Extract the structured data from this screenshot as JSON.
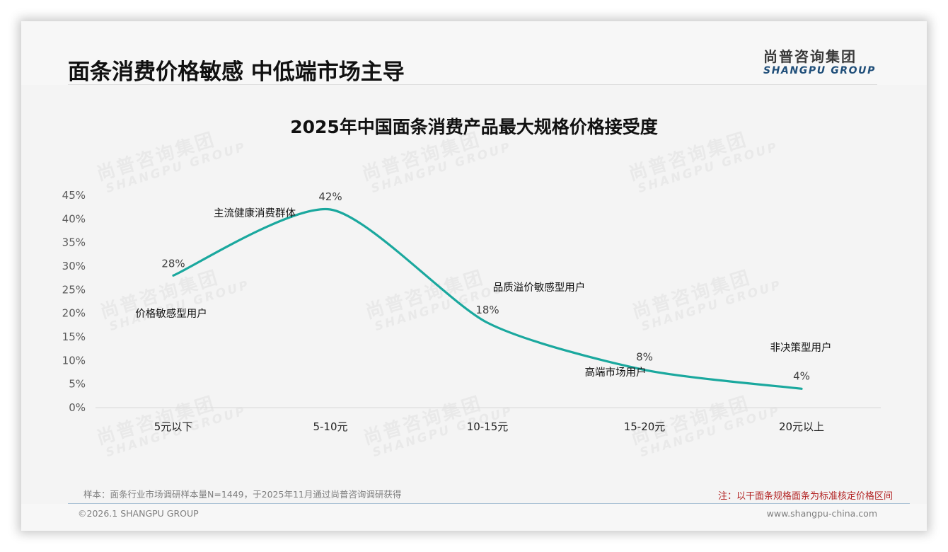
{
  "header": {
    "title": "面条消费价格敏感 中低端市场主导",
    "logo_cn": "尚普咨询集团",
    "logo_en": "SHANGPU GROUP"
  },
  "watermark": {
    "cn": "尚普咨询集团",
    "en": "SHANGPU GROUP"
  },
  "chart_data": {
    "type": "line",
    "title": "2025年中国面条消费产品最大规格价格接受度",
    "xlabel": "",
    "ylabel": "",
    "categories": [
      "5元以下",
      "5-10元",
      "10-15元",
      "15-20元",
      "20元以上"
    ],
    "values": [
      28,
      42,
      18,
      8,
      4
    ],
    "value_labels": [
      "28%",
      "42%",
      "18%",
      "8%",
      "4%"
    ],
    "yticks": [
      "0%",
      "5%",
      "10%",
      "15%",
      "20%",
      "25%",
      "30%",
      "35%",
      "40%",
      "45%"
    ],
    "ylim": [
      0,
      45
    ],
    "grid": false,
    "legend": null,
    "line_color": "#1aa89e",
    "annotations": [
      {
        "text": "价格敏感型用户",
        "category": "5元以下"
      },
      {
        "text": "主流健康消费群体",
        "category": "5-10元"
      },
      {
        "text": "品质溢价敏感型用户",
        "category": "10-15元"
      },
      {
        "text": "高端市场用户",
        "category": "15-20元"
      },
      {
        "text": "非决策型用户",
        "category": "20元以上"
      }
    ]
  },
  "footer": {
    "source": "样本：面条行业市场调研样本量N=1449，于2025年11月通过尚普咨询调研获得",
    "note": "注：以干面条规格面条为标准核定价格区间",
    "copyright": "©2026.1 SHANGPU GROUP",
    "website": "www.shangpu-china.com"
  }
}
